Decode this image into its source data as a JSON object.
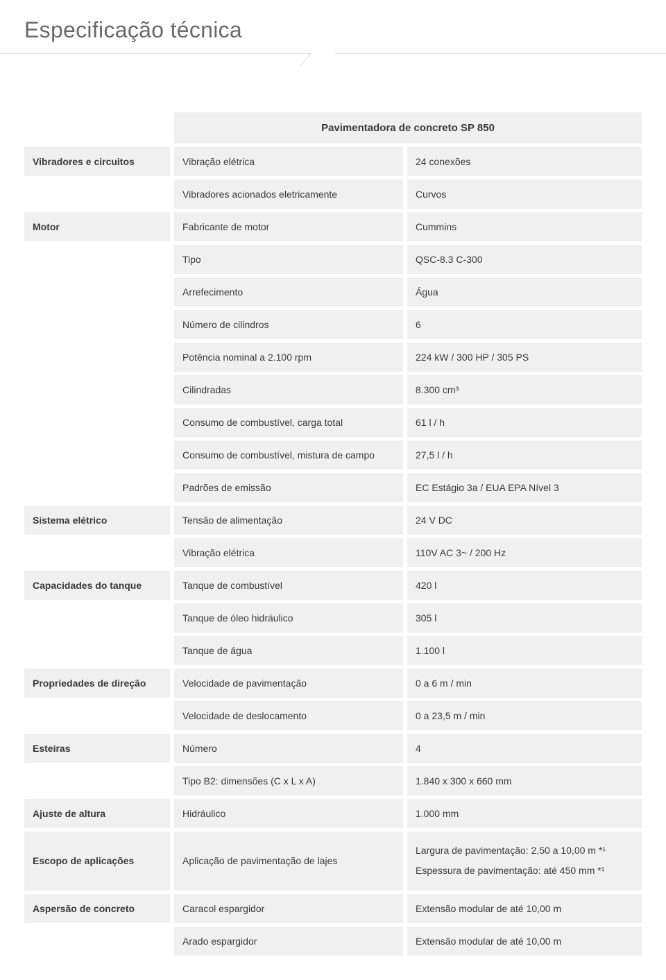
{
  "title": "Especificação técnica",
  "table": {
    "header": "Pavimentadora de concreto SP 850",
    "rows": [
      {
        "cat": "Vibradores e circuitos",
        "label": "Vibração elétrica",
        "value": "24 conexões"
      },
      {
        "label": "Vibradores acionados eletricamente",
        "value": "Curvos"
      },
      {
        "cat": "Motor",
        "label": "Fabricante de motor",
        "value": "Cummins"
      },
      {
        "label": "Tipo",
        "value": "QSC-8.3 C-300"
      },
      {
        "label": "Arrefecimento",
        "value": "Água"
      },
      {
        "label": "Número de cilindros",
        "value": "6"
      },
      {
        "label": "Potência nominal a 2.100 rpm",
        "value": "224 kW / 300 HP / 305 PS"
      },
      {
        "label": "Cilindradas",
        "value": "8.300 cm³"
      },
      {
        "label": "Consumo de combustível, carga total",
        "value": "61 l / h"
      },
      {
        "label": "Consumo de combustível, mistura de campo",
        "value": "27,5 l / h"
      },
      {
        "label": "Padrões de emissão",
        "value": "EC Estágio 3a / EUA EPA Nível 3"
      },
      {
        "cat": "Sistema elétrico",
        "label": "Tensão de alimentação",
        "value": "24 V DC"
      },
      {
        "label": "Vibração elétrica",
        "value": "110V AC 3~ / 200 Hz"
      },
      {
        "cat": "Capacidades do tanque",
        "label": "Tanque de combustível",
        "value": "420 l"
      },
      {
        "label": "Tanque de óleo hidráulico",
        "value": "305 l"
      },
      {
        "label": "Tanque de água",
        "value": "1.100 l"
      },
      {
        "cat": "Propriedades de direção",
        "label": "Velocidade de pavimentação",
        "value": "0 a 6 m / min"
      },
      {
        "label": "Velocidade de deslocamento",
        "value": "0 a 23,5 m / min"
      },
      {
        "cat": "Esteiras",
        "label": "Número",
        "value": "4"
      },
      {
        "label": "Tipo B2: dimensões (C x L x A)",
        "value": "1.840 x 300 x 660 mm"
      },
      {
        "cat": "Ajuste de altura",
        "label": "Hidráulico",
        "value": "1.000 mm"
      },
      {
        "cat": "Escopo de aplicações",
        "label": "Aplicação de pavimentação de lajes",
        "value": "Largura de pavimentação: 2,50 a 10,00 m *¹\nEspessura de pavimentação: até 450 mm *¹",
        "multiline": true
      },
      {
        "cat": "Aspersão de concreto",
        "label": "Caracol espargidor",
        "value": "Extensão modular de até 10,00 m"
      },
      {
        "label": "Arado espargidor",
        "value": "Extensão modular de até 10,00 m"
      }
    ]
  },
  "colors": {
    "titleColor": "#6a6a6a",
    "rowBg": "#f0f0f0",
    "textColor": "#3a3a3a",
    "dividerColor": "#d0d0d0",
    "background": "#ffffff"
  },
  "fonts": {
    "titleSize": 32,
    "titleWeight": 300,
    "headerSize": 15,
    "cellSize": 14,
    "catWeight": 600
  }
}
